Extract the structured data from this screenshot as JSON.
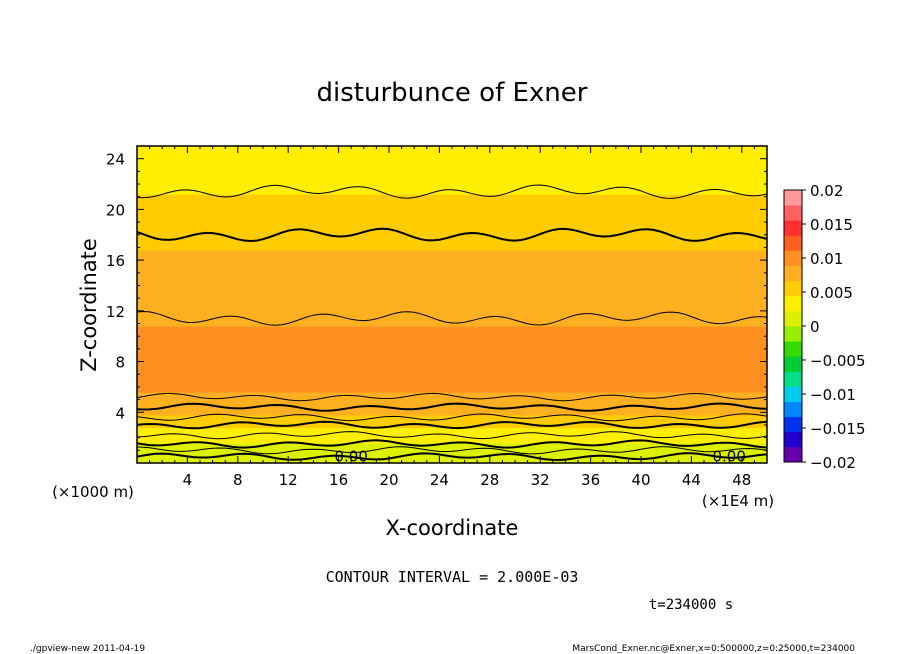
{
  "chart_data": {
    "type": "heatmap",
    "title": "disturbunce of Exner",
    "xlabel": "X-coordinate",
    "ylabel": "Z-coordinate",
    "x_unit": "(×1E4 m)",
    "y_unit": "(×1000 m)",
    "xlim": [
      0,
      50
    ],
    "ylim": [
      0,
      25
    ],
    "x_ticks": [
      4,
      8,
      12,
      16,
      20,
      24,
      28,
      32,
      36,
      40,
      44,
      48
    ],
    "y_ticks": [
      4,
      8,
      12,
      16,
      20,
      24
    ],
    "colorbar": {
      "range": [
        -0.02,
        0.02
      ],
      "tick_values": [
        0.02,
        0.015,
        0.01,
        0.005,
        0,
        -0.005,
        -0.01,
        -0.015,
        -0.02
      ],
      "tick_labels": [
        "0.02",
        "0.015",
        "0.01",
        "0.005",
        "0",
        "−0.005",
        "−0.01",
        "−0.015",
        "−0.02"
      ],
      "colors": [
        "#6600aa",
        "#2200cc",
        "#0033ee",
        "#0088ff",
        "#00ccee",
        "#00dd88",
        "#00cc33",
        "#33dd00",
        "#99ee00",
        "#ddf000",
        "#ffee00",
        "#ffcc00",
        "#ffb020",
        "#ff9020",
        "#ff6020",
        "#ff3030",
        "#ff6060",
        "#ff9999"
      ]
    },
    "profile": [
      {
        "z": 0.0,
        "value": 0.0
      },
      {
        "z": 1.0,
        "value": 0.001
      },
      {
        "z": 2.0,
        "value": 0.003
      },
      {
        "z": 3.0,
        "value": 0.005
      },
      {
        "z": 4.0,
        "value": 0.007
      },
      {
        "z": 5.0,
        "value": 0.0085
      },
      {
        "z": 7.0,
        "value": 0.0098
      },
      {
        "z": 9.0,
        "value": 0.0095
      },
      {
        "z": 12.0,
        "value": 0.0085
      },
      {
        "z": 15.0,
        "value": 0.0078
      },
      {
        "z": 18.0,
        "value": 0.006
      },
      {
        "z": 20.0,
        "value": 0.0052
      },
      {
        "z": 22.0,
        "value": 0.004
      },
      {
        "z": 25.0,
        "value": 0.0032
      }
    ],
    "contours": [
      {
        "z": 0.5,
        "bold": true
      },
      {
        "z": 1.0,
        "bold": false
      },
      {
        "z": 1.5,
        "bold": true
      },
      {
        "z": 2.2,
        "bold": false
      },
      {
        "z": 3.0,
        "bold": true
      },
      {
        "z": 3.6,
        "bold": false
      },
      {
        "z": 4.4,
        "bold": true
      },
      {
        "z": 5.2,
        "bold": false
      },
      {
        "z": 11.4,
        "bold": false
      },
      {
        "z": 18.0,
        "bold": true
      },
      {
        "z": 21.4,
        "bold": false
      }
    ],
    "contour_labels": [
      {
        "text": "0.00",
        "x": 17.0,
        "z": 0.5
      },
      {
        "text": "0.00",
        "x": 47.0,
        "z": 0.5
      }
    ],
    "contour_interval": "CONTOUR INTERVAL = 2.000E-03",
    "time": "t=234000 s"
  },
  "footer": {
    "left": "./gpview-new   2011-04-19",
    "right": "MarsCond_Exner.nc@Exner,x=0:500000,z=0:25000,t=234000"
  }
}
